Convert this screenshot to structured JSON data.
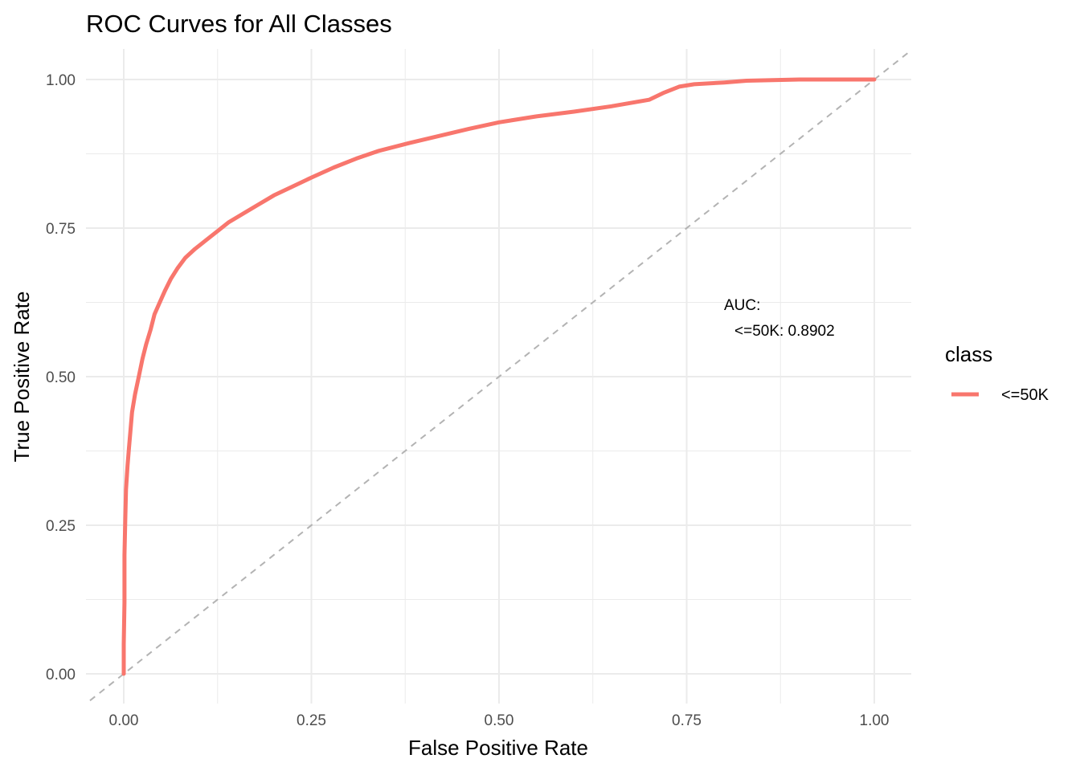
{
  "chart_data": {
    "type": "line",
    "title": "ROC Curves for All Classes",
    "xlabel": "False Positive Rate",
    "ylabel": "True Positive Rate",
    "xlim": [
      0,
      1
    ],
    "ylim": [
      0,
      1
    ],
    "x_ticks": [
      "0.00",
      "0.25",
      "0.50",
      "0.75",
      "1.00"
    ],
    "y_ticks": [
      "0.00",
      "0.25",
      "0.50",
      "0.75",
      "1.00"
    ],
    "grid": true,
    "legend": {
      "title": "class",
      "position": "right"
    },
    "annotation": {
      "line1": "AUC:",
      "line2": "<=50K: 0.8902"
    },
    "reference_line": {
      "from": [
        0,
        0
      ],
      "to": [
        1,
        1
      ],
      "style": "dashed",
      "color": "#b3b3b3"
    },
    "series": [
      {
        "name": "<=50K",
        "color": "#F8766D",
        "points": [
          [
            0.0,
            0.0
          ],
          [
            0.0,
            0.05
          ],
          [
            0.001,
            0.12
          ],
          [
            0.001,
            0.2
          ],
          [
            0.002,
            0.26
          ],
          [
            0.003,
            0.31
          ],
          [
            0.005,
            0.35
          ],
          [
            0.007,
            0.38
          ],
          [
            0.009,
            0.41
          ],
          [
            0.011,
            0.44
          ],
          [
            0.015,
            0.47
          ],
          [
            0.02,
            0.5
          ],
          [
            0.025,
            0.53
          ],
          [
            0.03,
            0.555
          ],
          [
            0.036,
            0.58
          ],
          [
            0.041,
            0.605
          ],
          [
            0.048,
            0.625
          ],
          [
            0.055,
            0.645
          ],
          [
            0.063,
            0.665
          ],
          [
            0.072,
            0.683
          ],
          [
            0.082,
            0.7
          ],
          [
            0.095,
            0.715
          ],
          [
            0.11,
            0.73
          ],
          [
            0.125,
            0.745
          ],
          [
            0.14,
            0.76
          ],
          [
            0.16,
            0.775
          ],
          [
            0.18,
            0.79
          ],
          [
            0.2,
            0.805
          ],
          [
            0.225,
            0.82
          ],
          [
            0.25,
            0.835
          ],
          [
            0.28,
            0.852
          ],
          [
            0.31,
            0.867
          ],
          [
            0.34,
            0.88
          ],
          [
            0.38,
            0.893
          ],
          [
            0.42,
            0.905
          ],
          [
            0.46,
            0.917
          ],
          [
            0.5,
            0.928
          ],
          [
            0.55,
            0.938
          ],
          [
            0.6,
            0.946
          ],
          [
            0.65,
            0.955
          ],
          [
            0.7,
            0.966
          ],
          [
            0.72,
            0.978
          ],
          [
            0.74,
            0.988
          ],
          [
            0.76,
            0.992
          ],
          [
            0.8,
            0.995
          ],
          [
            0.83,
            0.998
          ],
          [
            0.9,
            1.0
          ],
          [
            1.0,
            1.0
          ]
        ]
      }
    ]
  }
}
